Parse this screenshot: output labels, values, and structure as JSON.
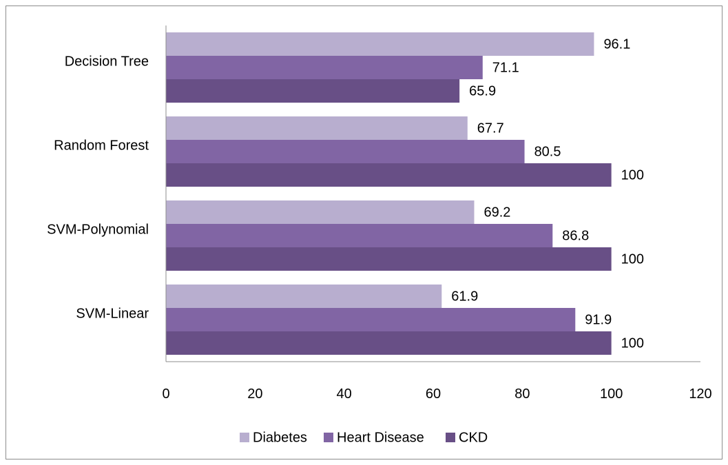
{
  "chart_data": {
    "type": "bar",
    "orientation": "horizontal",
    "title": "",
    "xlabel": "",
    "ylabel": "",
    "categories": [
      "SVM-Linear",
      "SVM-Polynomial",
      "Random Forest",
      "Decision Tree"
    ],
    "series": [
      {
        "name": "Diabetes",
        "color": "#b8aecf",
        "values": [
          61.9,
          69.2,
          67.7,
          96.1
        ]
      },
      {
        "name": "Heart Disease",
        "color": "#8165a4",
        "values": [
          91.9,
          86.8,
          80.5,
          71.1
        ]
      },
      {
        "name": "CKD",
        "color": "#684f86",
        "values": [
          100,
          100,
          100,
          65.9
        ]
      }
    ],
    "xlim": [
      0,
      120
    ],
    "xticks": [
      0,
      20,
      40,
      60,
      80,
      100,
      120
    ],
    "grid": false,
    "legend": "bottom"
  }
}
